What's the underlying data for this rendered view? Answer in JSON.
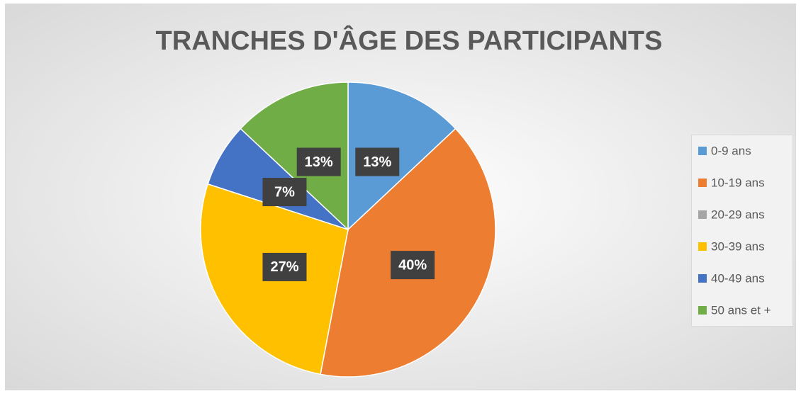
{
  "chart_data": {
    "type": "pie",
    "title": "TRANCHES D'ÂGE DES PARTICIPANTS",
    "categories": [
      "0-9 ans",
      "10-19 ans",
      "20-29 ans",
      "30-39 ans",
      "40-49 ans",
      "50 ans et +"
    ],
    "values": [
      13,
      40,
      0,
      27,
      7,
      13
    ],
    "value_labels": [
      "13%",
      "40%",
      null,
      "27%",
      "7%",
      "13%"
    ],
    "colors": [
      "#5b9bd5",
      "#ed7d31",
      "#a5a5a5",
      "#ffc000",
      "#4472c4",
      "#70ad47"
    ],
    "legend": "right"
  }
}
